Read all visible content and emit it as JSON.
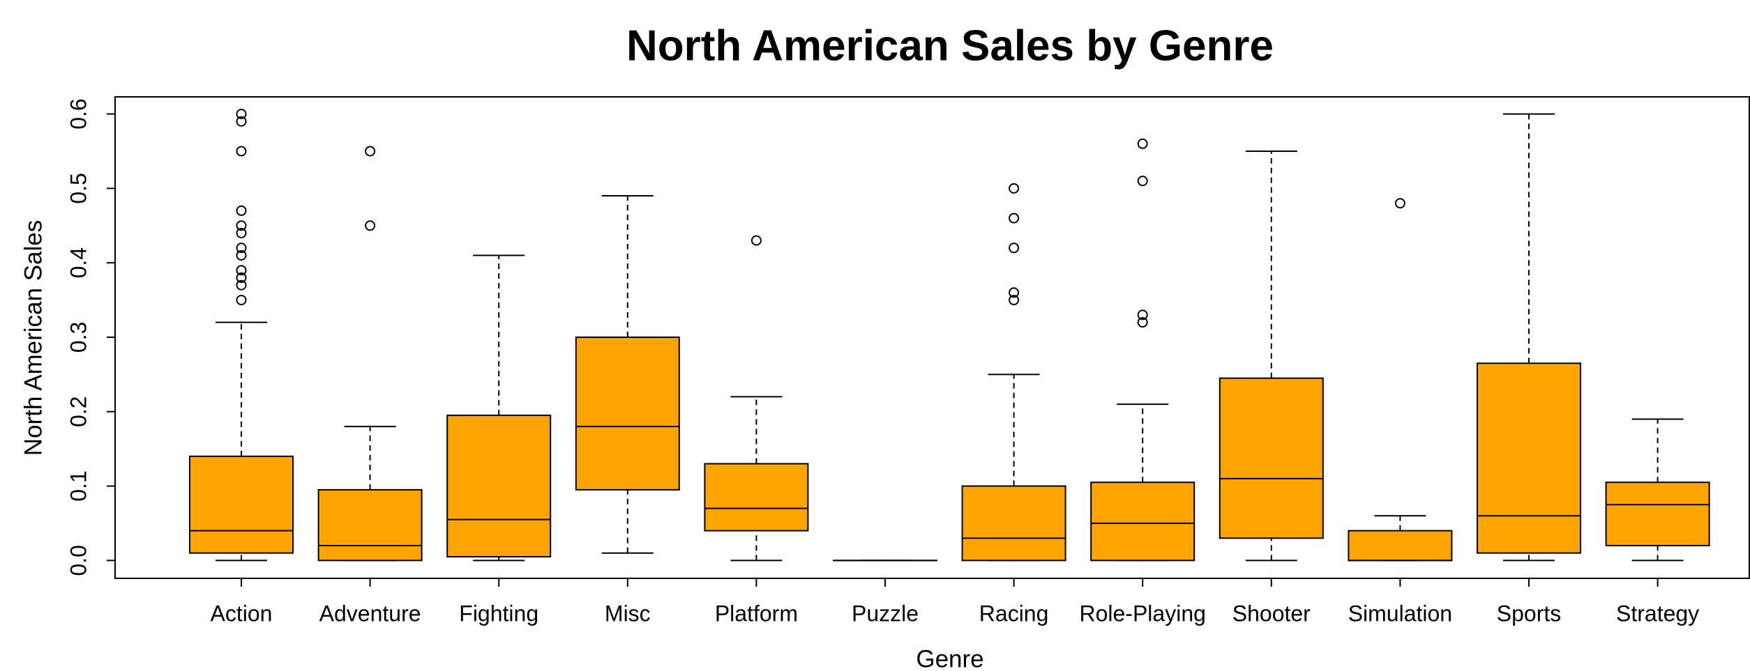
{
  "chart_data": {
    "type": "box",
    "title": "North American Sales by Genre",
    "x_label": "Genre",
    "y_label": "North American Sales",
    "categories": [
      "Action",
      "Adventure",
      "Fighting",
      "Misc",
      "Platform",
      "Puzzle",
      "Racing",
      "Role-Playing",
      "Shooter",
      "Simulation",
      "Sports",
      "Strategy"
    ],
    "boxes": [
      {
        "min": 0,
        "q1": 0.01,
        "median": 0.04,
        "q3": 0.14,
        "max": 0.32,
        "outliers": [
          0.35,
          0.37,
          0.38,
          0.39,
          0.41,
          0.42,
          0.44,
          0.45,
          0.47,
          0.55,
          0.59,
          0.6
        ]
      },
      {
        "min": 0,
        "q1": 0,
        "median": 0.02,
        "q3": 0.095,
        "max": 0.18,
        "outliers": [
          0.45,
          0.55
        ]
      },
      {
        "min": 0,
        "q1": 0.005,
        "median": 0.055,
        "q3": 0.195,
        "max": 0.41,
        "outliers": []
      },
      {
        "min": 0.01,
        "q1": 0.095,
        "median": 0.18,
        "q3": 0.3,
        "max": 0.49,
        "outliers": []
      },
      {
        "min": 0,
        "q1": 0.04,
        "median": 0.07,
        "q3": 0.13,
        "max": 0.22,
        "outliers": [
          0.43
        ]
      },
      {
        "min": 0,
        "q1": 0,
        "median": 0,
        "q3": 0,
        "max": 0,
        "outliers": []
      },
      {
        "min": 0,
        "q1": 0,
        "median": 0.03,
        "q3": 0.1,
        "max": 0.25,
        "outliers": [
          0.35,
          0.36,
          0.42,
          0.46,
          0.5
        ]
      },
      {
        "min": 0,
        "q1": 0,
        "median": 0.05,
        "q3": 0.105,
        "max": 0.21,
        "outliers": [
          0.32,
          0.33,
          0.51,
          0.56
        ]
      },
      {
        "min": 0,
        "q1": 0.03,
        "median": 0.11,
        "q3": 0.245,
        "max": 0.55,
        "outliers": []
      },
      {
        "min": 0,
        "q1": 0,
        "median": 0,
        "q3": 0.04,
        "max": 0.06,
        "outliers": [
          0.48
        ]
      },
      {
        "min": 0,
        "q1": 0.01,
        "median": 0.06,
        "q3": 0.265,
        "max": 0.6,
        "outliers": []
      },
      {
        "min": 0,
        "q1": 0.02,
        "median": 0.075,
        "q3": 0.105,
        "max": 0.19,
        "outliers": []
      }
    ],
    "color": "#FFA500",
    "ylim": [
      -0.024,
      0.623
    ],
    "yticks": [
      {
        "value": 0,
        "label": "0.0"
      },
      0.1,
      0.2,
      0.3,
      0.4,
      0.5,
      0.6
    ]
  }
}
